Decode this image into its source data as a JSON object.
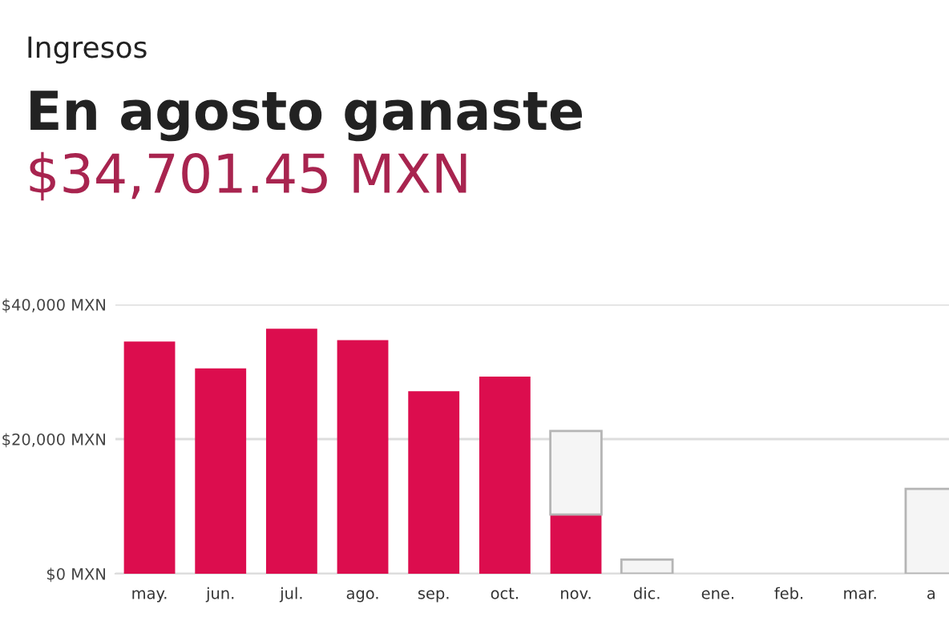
{
  "chart_data": {
    "type": "bar",
    "title": "Ingresos",
    "subtitle": "En agosto ganaste",
    "annotations": [
      "$34,701.45 MXN"
    ],
    "categories": [
      "may.",
      "jun.",
      "jul.",
      "ago.",
      "sep.",
      "oct.",
      "nov.",
      "dic.",
      "ene.",
      "feb.",
      "mar.",
      "a"
    ],
    "stacked": true,
    "series": [
      {
        "color": "#dc0d4e",
        "values": [
          34500,
          30500,
          36400,
          34700,
          27100,
          29300,
          8800,
          0,
          0,
          0,
          0,
          0
        ]
      },
      {
        "color": "#f5f5f5",
        "values": [
          0,
          0,
          0,
          0,
          0,
          0,
          12400,
          2100,
          0,
          0,
          0,
          12600
        ]
      }
    ],
    "ylim": [
      0,
      40000
    ],
    "yticks": [
      {
        "value": 0,
        "label": "$0 MXN"
      },
      {
        "value": 20000,
        "label": "$20,000 MXN"
      },
      {
        "value": 40000,
        "label": "$40,000 MXN"
      }
    ],
    "grid": "y",
    "legend": false
  }
}
